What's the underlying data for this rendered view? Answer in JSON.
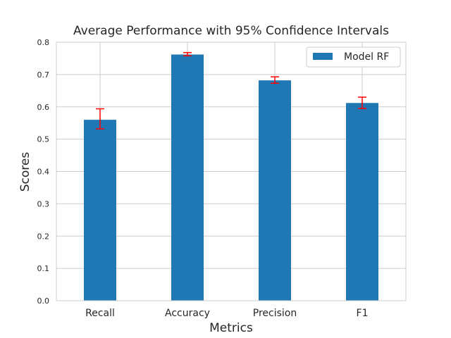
{
  "chart_data": {
    "type": "bar",
    "title": "Average Performance with 95% Confidence Intervals",
    "xlabel": "Metrics",
    "ylabel": "Scores",
    "categories": [
      "Recall",
      "Accuracy",
      "Precision",
      "F1"
    ],
    "series": [
      {
        "name": "Model RF",
        "values": [
          0.56,
          0.762,
          0.682,
          0.612
        ],
        "ci_lower": [
          0.532,
          0.758,
          0.673,
          0.595
        ],
        "ci_upper": [
          0.594,
          0.768,
          0.693,
          0.63
        ]
      }
    ],
    "ylim": [
      0,
      0.8
    ],
    "yticks": [
      "0.0",
      "0.1",
      "0.2",
      "0.3",
      "0.4",
      "0.5",
      "0.6",
      "0.7",
      "0.8"
    ],
    "grid": true,
    "legend_position": "top-right",
    "colors": {
      "bar": "#1f77b4",
      "error_bar": "#ff0000",
      "grid": "#cccccc",
      "text": "#262626"
    }
  }
}
